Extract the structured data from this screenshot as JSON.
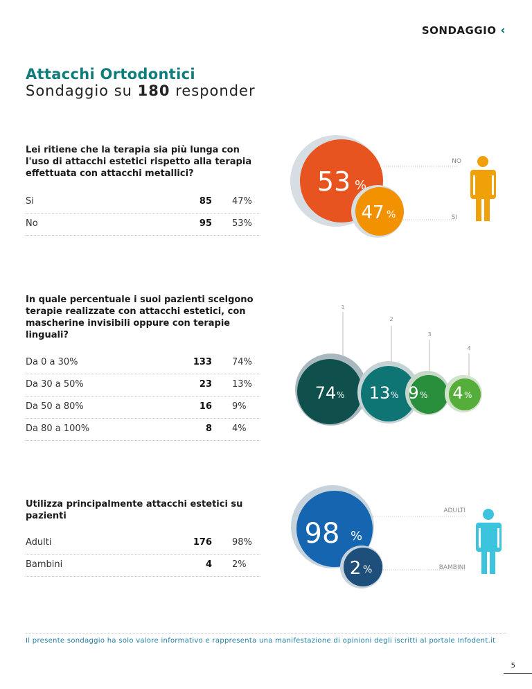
{
  "header": {
    "section": "SONDAGGIO",
    "chevron": "‹"
  },
  "title": "Attacchi Ortodontici",
  "subtitle": {
    "prefix": "Sondaggio su",
    "count": "180",
    "suffix": "responder"
  },
  "q1": {
    "question": "Lei ritiene che la terapia sia più lunga con l'uso di attacchi estetici rispetto alla terapia effettuata con attacchi metallici?",
    "rows": [
      {
        "label": "Si",
        "count": "85",
        "pct": "47%"
      },
      {
        "label": "No",
        "count": "95",
        "pct": "53%"
      }
    ],
    "chart": {
      "big": "53",
      "small": "47",
      "unit": "%",
      "label_top": "NO",
      "label_bottom": "SI"
    }
  },
  "q2": {
    "question": "In quale percentuale i suoi pazienti scelgono terapie realizzate con attacchi estetici, con mascherine invisibili oppure con terapie linguali?",
    "rows": [
      {
        "label": "Da 0 a 30%",
        "count": "133",
        "pct": "74%"
      },
      {
        "label": "Da 30 a 50%",
        "count": "23",
        "pct": "13%"
      },
      {
        "label": "Da 50 a 80%",
        "count": "16",
        "pct": "9%"
      },
      {
        "label": "Da 80 a 100%",
        "count": "8",
        "pct": "4%"
      }
    ],
    "chart": {
      "unit": "%",
      "bubbles": [
        {
          "marker": "1",
          "value": "74",
          "color": "#0f4f4c"
        },
        {
          "marker": "2",
          "value": "13",
          "color": "#0e7474"
        },
        {
          "marker": "3",
          "value": "9",
          "color": "#2a8f3c"
        },
        {
          "marker": "4",
          "value": "4",
          "color": "#55ad3a"
        }
      ]
    }
  },
  "q3": {
    "question": "Utilizza principalmente attacchi estetici su pazienti",
    "rows": [
      {
        "label": "Adulti",
        "count": "176",
        "pct": "98%"
      },
      {
        "label": "Bambini",
        "count": "4",
        "pct": "2%"
      }
    ],
    "chart": {
      "big": "98",
      "small": "2",
      "unit": "%",
      "label_top": "ADULTI",
      "label_bottom": "BAMBINI"
    }
  },
  "footer": "Il presente sondaggio ha solo valore informativo e rappresenta una manifestazione di opinioni degli iscritti al portale Infodent.it",
  "page_number": "5",
  "colors": {
    "teal_title": "#0f7d7b",
    "orange_big": "#e8541f",
    "orange_small": "#f39200",
    "person_orange": "#f0a008",
    "blue_big": "#1565b0",
    "blue_small": "#1d4f7a",
    "person_cyan": "#3cc4df",
    "halo": "#c9d3dc"
  }
}
